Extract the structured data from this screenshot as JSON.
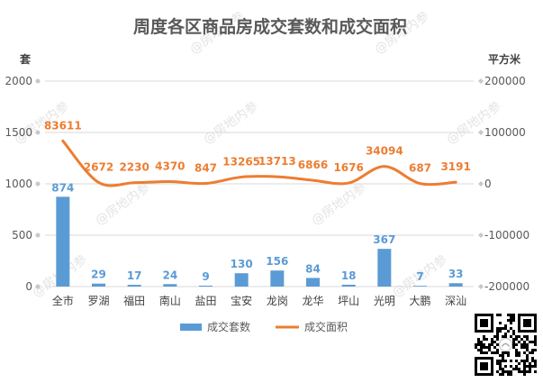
{
  "chart_data": {
    "type": "bar",
    "title": "周度各区商品房成交套数和成交面积",
    "categories": [
      "全市",
      "罗湖",
      "福田",
      "南山",
      "盐田",
      "宝安",
      "龙岗",
      "龙华",
      "坪山",
      "光明",
      "大鹏",
      "深汕"
    ],
    "series": [
      {
        "name": "成交套数",
        "type": "bar",
        "axis": "left",
        "color": "#5b9bd5",
        "values": [
          874,
          29,
          17,
          24,
          9,
          130,
          156,
          84,
          18,
          367,
          7,
          33
        ]
      },
      {
        "name": "成交面积",
        "type": "line",
        "axis": "right",
        "color": "#ed7d31",
        "values": [
          83611,
          2672,
          2230,
          4370,
          847,
          13265,
          13713,
          6866,
          1676,
          34094,
          687,
          3191
        ]
      }
    ],
    "y_left": {
      "label": "套",
      "ylim": [
        0,
        2000
      ],
      "ticks": [
        "0",
        "500",
        "1000",
        "1500",
        "2000"
      ]
    },
    "y_right": {
      "label": "平方米",
      "ylim": [
        -200000,
        200000
      ],
      "ticks": [
        "-200000",
        "-100000",
        "0",
        "100000",
        "200000"
      ]
    },
    "grid": true,
    "legend": "bottom"
  },
  "watermark": "@房地内参"
}
